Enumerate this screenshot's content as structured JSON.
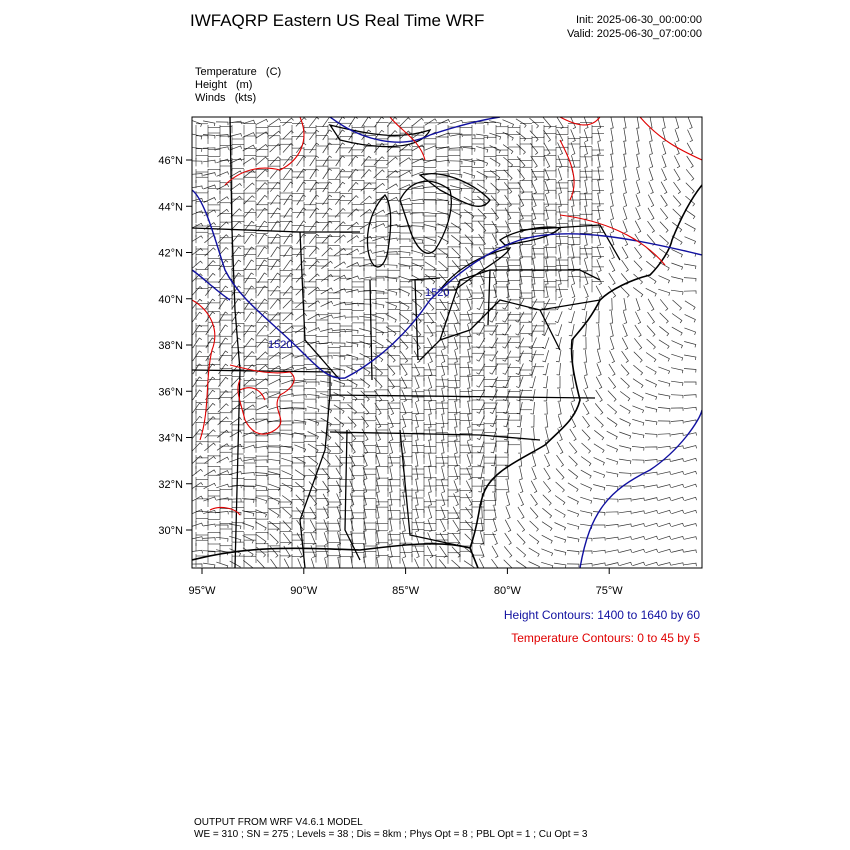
{
  "header": {
    "title": "IWFAQRP Eastern US Real Time WRF",
    "init": "Init: 2025-06-30_00:00:00",
    "valid": "Valid: 2025-06-30_07:00:00"
  },
  "fields": [
    "Temperature   (C)",
    "Height   (m)",
    "Winds   (kts)"
  ],
  "map": {
    "lat_labels": [
      "46°N",
      "44°N",
      "42°N",
      "40°N",
      "38°N",
      "36°N",
      "34°N",
      "32°N",
      "30°N"
    ],
    "lon_labels": [
      "95°W",
      "90°W",
      "85°W",
      "80°W",
      "75°W"
    ],
    "contour_labels": [
      "1520",
      "1520"
    ]
  },
  "legend": {
    "height": "Height Contours: 1400 to 1640 by 60",
    "temperature": "Temperature Contours: 0 to 45 by 5"
  },
  "footer": {
    "line1": "OUTPUT FROM WRF V4.6.1 MODEL",
    "line2": "WE = 310 ; SN = 275 ; Levels = 38 ; Dis = 8km ; Phys Opt = 8 ; PBL Opt = 1 ; Cu Opt = 3"
  }
}
